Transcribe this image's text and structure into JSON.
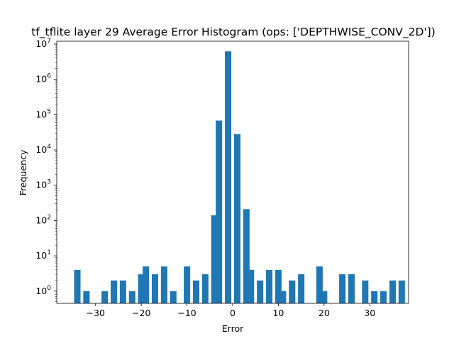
{
  "chart_data": {
    "type": "bar",
    "title": "tf_tflite layer 29 Average Error Histogram (ops: ['DEPTHWISE_CONV_2D'])",
    "xlabel": "Error",
    "ylabel": "Frequency",
    "yscale": "log",
    "xlim": [
      -38.5,
      38.5
    ],
    "ylim": [
      0.45,
      12000000
    ],
    "bar_width": 1.4,
    "color": "#1f77b4",
    "grid": false,
    "legend": "none",
    "x_ticks": [
      -30,
      -20,
      -10,
      0,
      10,
      20,
      30
    ],
    "x_tick_labels": [
      "−30",
      "−20",
      "−10",
      "0",
      "10",
      "20",
      "30"
    ],
    "y_ticks": [
      1,
      10,
      100,
      1000,
      10000,
      100000,
      1000000,
      10000000
    ],
    "y_tick_exponents": [
      "0",
      "1",
      "2",
      "3",
      "4",
      "5",
      "6",
      "7"
    ],
    "y_tick_base": "10",
    "bars": [
      {
        "x": -34,
        "y": 4
      },
      {
        "x": -32,
        "y": 1
      },
      {
        "x": -28,
        "y": 1
      },
      {
        "x": -26,
        "y": 2
      },
      {
        "x": -24,
        "y": 2
      },
      {
        "x": -22,
        "y": 1
      },
      {
        "x": -20,
        "y": 3
      },
      {
        "x": -19,
        "y": 5
      },
      {
        "x": -17,
        "y": 3
      },
      {
        "x": -15,
        "y": 5
      },
      {
        "x": -13,
        "y": 1
      },
      {
        "x": -10,
        "y": 5
      },
      {
        "x": -8,
        "y": 2
      },
      {
        "x": -6,
        "y": 3
      },
      {
        "x": -4,
        "y": 140
      },
      {
        "x": -3,
        "y": 68000
      },
      {
        "x": -1,
        "y": 6200000
      },
      {
        "x": 1,
        "y": 28000
      },
      {
        "x": 3,
        "y": 210
      },
      {
        "x": 4,
        "y": 4
      },
      {
        "x": 6,
        "y": 2
      },
      {
        "x": 8,
        "y": 4
      },
      {
        "x": 10,
        "y": 4
      },
      {
        "x": 11,
        "y": 1
      },
      {
        "x": 13,
        "y": 2
      },
      {
        "x": 15,
        "y": 3
      },
      {
        "x": 19,
        "y": 5
      },
      {
        "x": 20,
        "y": 1
      },
      {
        "x": 24,
        "y": 3
      },
      {
        "x": 26,
        "y": 3
      },
      {
        "x": 29,
        "y": 2
      },
      {
        "x": 31,
        "y": 1
      },
      {
        "x": 33,
        "y": 1
      },
      {
        "x": 35,
        "y": 2
      },
      {
        "x": 37,
        "y": 2
      }
    ]
  }
}
